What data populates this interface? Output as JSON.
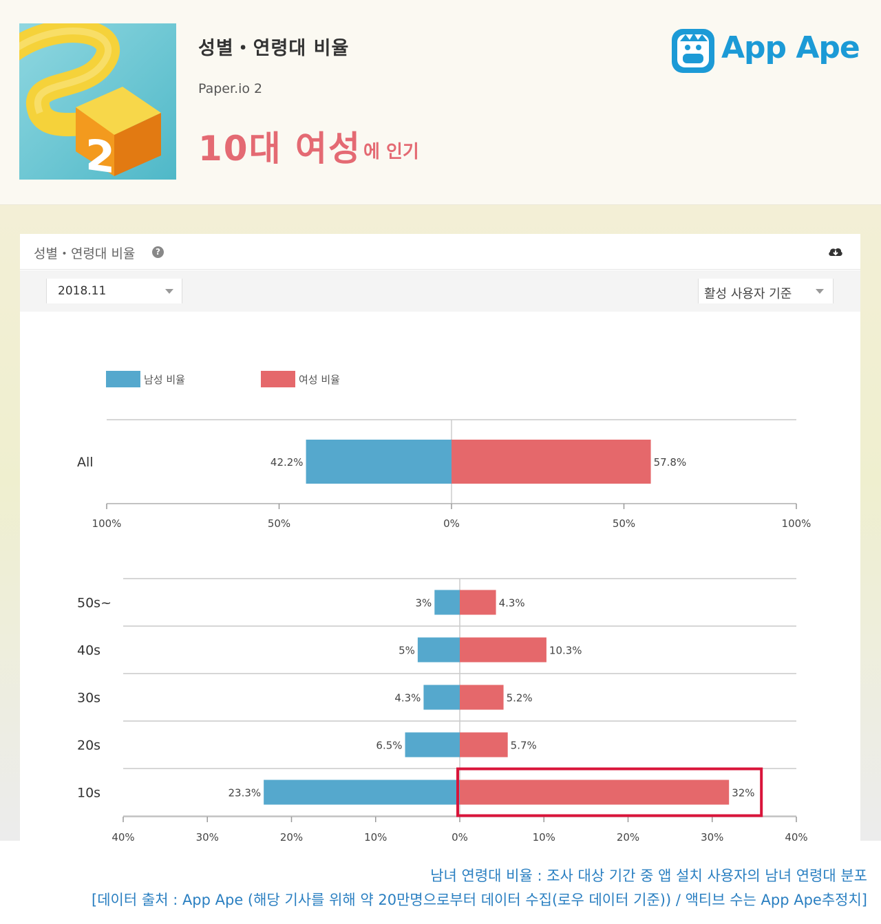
{
  "header": {
    "title": "성별・연령대 비율",
    "app_name": "Paper.io 2",
    "popular_main": "10대 여성",
    "popular_sub": "에 인기",
    "brand": "App Ape"
  },
  "card": {
    "title": "성별・연령대 비율",
    "help_icon": "question-circle-icon",
    "download_icon": "cloud-download-icon",
    "period_value": "2018.11",
    "basis_value": "활성 사용자 기준"
  },
  "chart_data": [
    {
      "type": "bar",
      "orientation": "horizontal-diverging",
      "categories": [
        "All"
      ],
      "series": [
        {
          "name": "남성 비율",
          "values": [
            42.2
          ],
          "labels": [
            "42.2%"
          ],
          "color": "#55a8cd"
        },
        {
          "name": "여성 비율",
          "values": [
            57.8
          ],
          "labels": [
            "57.8%"
          ],
          "color": "#e5686b"
        }
      ],
      "xlim": [
        -100,
        100
      ],
      "xticks": [
        -100,
        -50,
        0,
        50,
        100
      ],
      "xtick_labels": [
        "100%",
        "50%",
        "0%",
        "50%",
        "100%"
      ],
      "legend": "top-left",
      "grid": true
    },
    {
      "type": "bar",
      "orientation": "horizontal-diverging",
      "categories": [
        "50s~",
        "40s",
        "30s",
        "20s",
        "10s"
      ],
      "series": [
        {
          "name": "남성 비율",
          "values": [
            3,
            5,
            4.3,
            6.5,
            23.3
          ],
          "labels": [
            "3%",
            "5%",
            "4.3%",
            "6.5%",
            "23.3%"
          ],
          "color": "#55a8cd"
        },
        {
          "name": "여성 비율",
          "values": [
            4.3,
            10.3,
            5.2,
            5.7,
            32
          ],
          "labels": [
            "4.3%",
            "10.3%",
            "5.2%",
            "5.7%",
            "32%"
          ],
          "color": "#e5686b"
        }
      ],
      "xlim": [
        -40,
        40
      ],
      "xticks": [
        -40,
        -30,
        -20,
        -10,
        0,
        10,
        20,
        30,
        40
      ],
      "xtick_labels": [
        "40%",
        "30%",
        "20%",
        "10%",
        "0%",
        "10%",
        "20%",
        "30%",
        "40%"
      ],
      "highlight": {
        "category": "10s",
        "series": "여성 비율",
        "color": "#d9143a"
      },
      "grid": true
    }
  ],
  "footer": {
    "line1": "남녀 연령대 비율 : 조사 대상 기간 중 앱 설치 사용자의 남녀 연령대 분포",
    "line2": "[데이터 출처 : App Ape (해당 기사를 위해 약 20만명으로부터 데이터 수집(로우 데이터 기준)) / 액티브 수는 App Ape추정치]"
  }
}
